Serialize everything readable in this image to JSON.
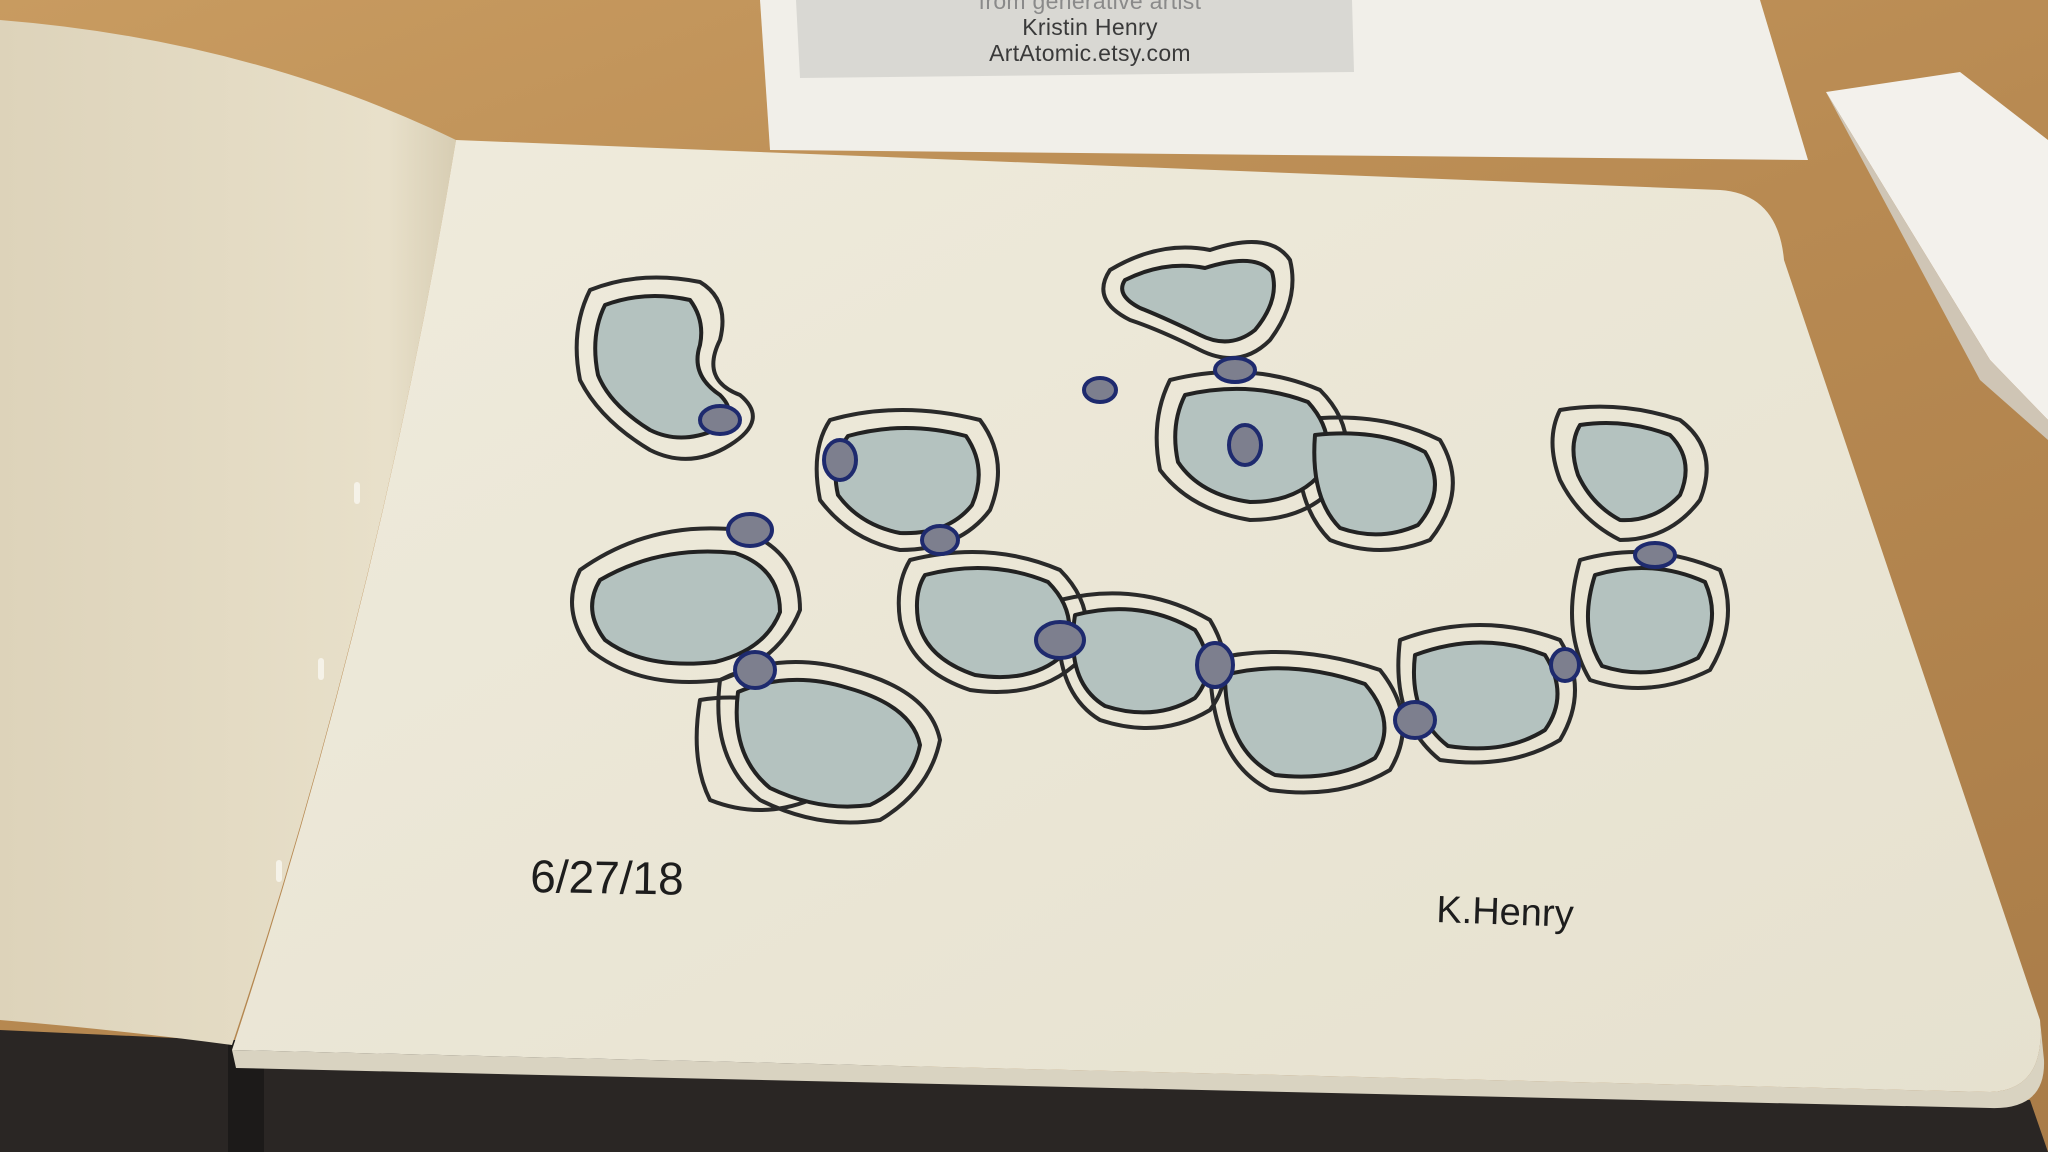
{
  "scene": {
    "description_free": true,
    "colors": {
      "table": "#b98d55",
      "paper": "#ece8d8",
      "left_page": "#e4dcc6",
      "wash": "#b6c3c0",
      "ink": "#262626",
      "link_ink": "#1e2a6e"
    }
  },
  "card": {
    "line1": "from generative artist",
    "line2": "Kristin Henry",
    "line3": "ArtAtomic.etsy.com"
  },
  "sketch": {
    "date": "6/27/18",
    "signature": "K.Henry"
  }
}
